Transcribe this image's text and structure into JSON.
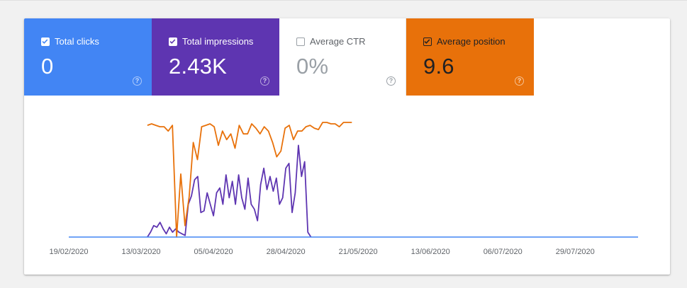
{
  "metrics": [
    {
      "key": "clicks",
      "label": "Total clicks",
      "value": "0",
      "checked": true,
      "bg": "#4285f4",
      "fg": "#ffffff"
    },
    {
      "key": "impressions",
      "label": "Total impressions",
      "value": "2.43K",
      "checked": true,
      "bg": "#5e35b1",
      "fg": "#ffffff"
    },
    {
      "key": "ctr",
      "label": "Average CTR",
      "value": "0%",
      "checked": false,
      "bg": "#ffffff",
      "fg": "#9aa0a6"
    },
    {
      "key": "position",
      "label": "Average position",
      "value": "9.6",
      "checked": true,
      "bg": "#e8710a",
      "fg": "#202124"
    }
  ],
  "help_glyph": "?",
  "chart_data": {
    "type": "line",
    "x_start": "2020-02-19",
    "x_end": "2020-08-18",
    "x_ticks": [
      "19/02/2020",
      "13/03/2020",
      "05/04/2020",
      "28/04/2020",
      "21/05/2020",
      "13/06/2020",
      "06/07/2020",
      "29/07/2020"
    ],
    "grid": false,
    "series": [
      {
        "name": "Total clicks",
        "color": "#4285f4",
        "dates": [
          "2020-02-19",
          "2020-08-18"
        ],
        "values": [
          0,
          0
        ]
      },
      {
        "name": "Total impressions",
        "color": "#5e35b1",
        "start": "2020-03-15",
        "axis": [
          0,
          70
        ],
        "values": [
          0,
          3,
          7,
          6,
          9,
          5,
          2,
          6,
          3,
          5,
          3,
          2,
          1,
          20,
          25,
          35,
          37,
          15,
          16,
          27,
          20,
          13,
          27,
          30,
          20,
          38,
          24,
          34,
          20,
          38,
          24,
          17,
          36,
          20,
          17,
          10,
          32,
          42,
          29,
          37,
          28,
          36,
          20,
          24,
          42,
          45,
          15,
          27,
          56,
          37,
          46,
          3,
          0
        ]
      },
      {
        "name": "Average position",
        "color": "#e8710a",
        "start": "2020-03-15",
        "end": "2020-05-19",
        "axis": [
          40,
          0
        ],
        "values": [
          1,
          0.5,
          1,
          1.5,
          1.5,
          3,
          1,
          40,
          18,
          36,
          26,
          7,
          13,
          1.5,
          1,
          0.5,
          1.5,
          8,
          3,
          6,
          4,
          9,
          1,
          4,
          4,
          0.5,
          2,
          4,
          1.5,
          3,
          7,
          12,
          10,
          2,
          1,
          6,
          3,
          3,
          1.5,
          1,
          2,
          2.5,
          0,
          0,
          0.5,
          0.5,
          1.5,
          0,
          0,
          0
        ]
      }
    ]
  }
}
